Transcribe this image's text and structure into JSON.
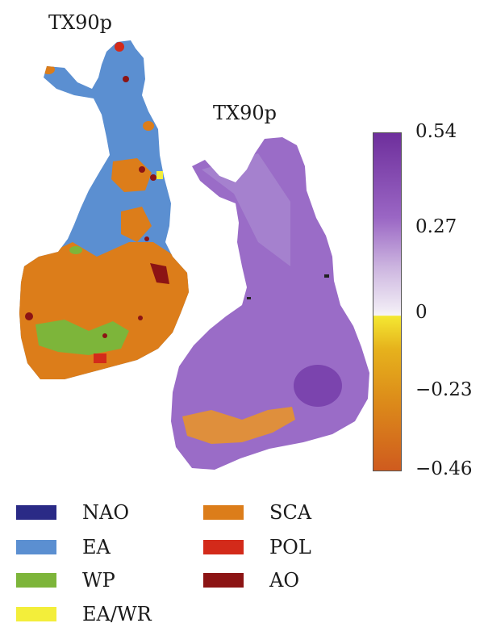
{
  "maps": [
    {
      "title": "TX90p"
    },
    {
      "title": "TX90p"
    }
  ],
  "colorbar": {
    "ticks": [
      "0.54",
      "0.27",
      "0",
      "−0.23",
      "−0.46"
    ],
    "colors": {
      "max": "#6e2f9c",
      "mid_high": "#cdb6e0",
      "zero": "#f4e832",
      "low": "#cf5b1e"
    }
  },
  "legend": [
    {
      "label": "NAO",
      "color": "#2a2a86"
    },
    {
      "label": "SCA",
      "color": "#dc7d1a"
    },
    {
      "label": "EA",
      "color": "#5b8fd1"
    },
    {
      "label": "POL",
      "color": "#d32a1a"
    },
    {
      "label": "WP",
      "color": "#7db53a"
    },
    {
      "label": "AO",
      "color": "#8c1414"
    },
    {
      "label": "EA/WR",
      "color": "#f3ee3a"
    }
  ]
}
